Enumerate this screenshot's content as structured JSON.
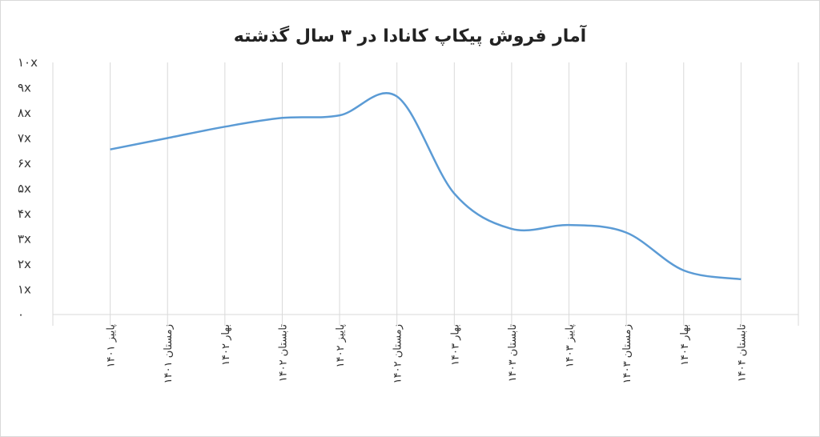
{
  "chart_data": {
    "type": "line",
    "title": "آمار فروش پیکاپ کانادا در ۳ سال گذشته",
    "xlabel": "",
    "ylabel": "",
    "categories": [
      "پاییز ۱۴۰۱",
      "زمستان ۱۴۰۱",
      "بهار ۱۴۰۲",
      "تابستان ۱۴۰۲",
      "پاییز ۱۴۰۲",
      "زمستان ۱۴۰۲",
      "بهار ۱۴۰۳",
      "تابستان ۱۴۰۳",
      "پاییز ۱۴۰۳",
      "زمستان ۱۴۰۳",
      "بهار ۱۴۰۴",
      "تابستان ۱۴۰۴"
    ],
    "series": [
      {
        "values": [
          6.55,
          7.0,
          7.45,
          7.8,
          7.9,
          8.65,
          4.8,
          3.4,
          3.55,
          3.25,
          1.75,
          1.4
        ],
        "color": "#5b9bd5",
        "smooth": true
      }
    ],
    "ylim": [
      0,
      10
    ],
    "yticks": [
      0,
      1,
      2,
      3,
      4,
      5,
      6,
      7,
      8,
      9,
      10
    ],
    "ytick_labels": [
      "۰",
      "۱x",
      "۲x",
      "۳x",
      "۴x",
      "۵x",
      "۶x",
      "۷x",
      "۸x",
      "۹x",
      "۱۰x"
    ],
    "grid": "vertical",
    "legend": "none"
  }
}
